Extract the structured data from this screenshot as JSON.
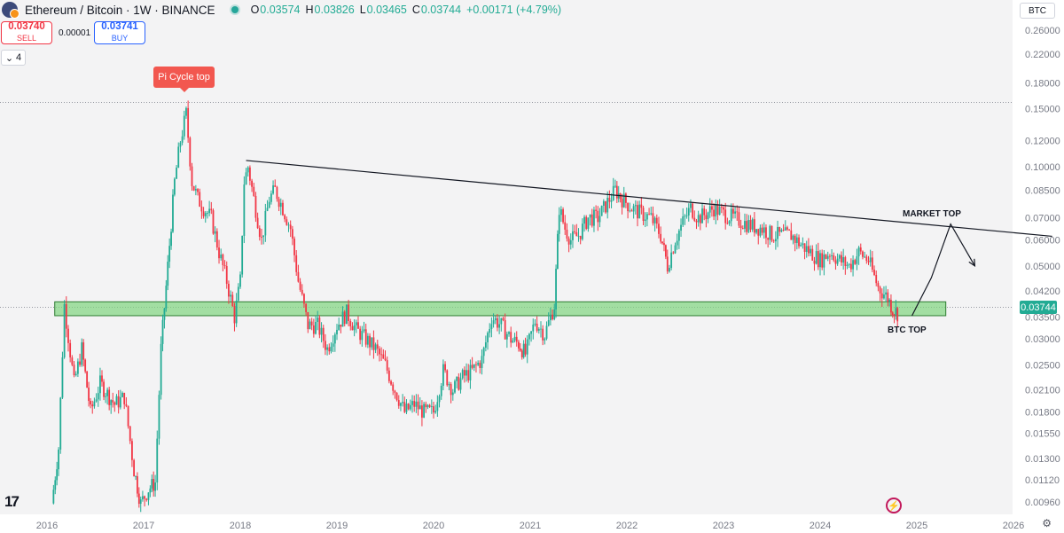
{
  "header": {
    "pair": "Ethereum / Bitcoin · 1W · BINANCE",
    "ohlc": [
      {
        "k": "O",
        "v": "0.03574"
      },
      {
        "k": "H",
        "v": "0.03826"
      },
      {
        "k": "L",
        "v": "0.03465"
      },
      {
        "k": "C",
        "v": "0.03744"
      },
      {
        "k": "",
        "v": "+0.00171 (+4.79%)"
      }
    ]
  },
  "trade": {
    "sell_price": "0.03740",
    "sell_label": "SELL",
    "buy_price": "0.03741",
    "buy_label": "BUY",
    "spread": "0.00001"
  },
  "indicators_count": "4",
  "currency": "BTC",
  "last_price_tag": "0.03744",
  "colors": {
    "up": "#22ab94",
    "down": "#f23645",
    "zone_fill": "#7fd47f",
    "zone_stroke": "#2e7d32",
    "trendline": "#131722"
  },
  "chart_data": {
    "type": "candlestick",
    "title": "Ethereum / Bitcoin · 1W · BINANCE",
    "y_scale": "log",
    "ylim": [
      0.0088,
      0.28
    ],
    "y_ticks": [
      "0.26000",
      "0.22000",
      "0.18000",
      "0.15000",
      "0.12000",
      "0.10000",
      "0.08500",
      "0.07000",
      "0.06000",
      "0.05000",
      "0.04200",
      "0.03500",
      "0.03000",
      "0.02500",
      "0.02100",
      "0.01800",
      "0.01550",
      "0.01300",
      "0.01120",
      "0.00960"
    ],
    "x_ticks": [
      "2016",
      "2017",
      "2018",
      "2019",
      "2020",
      "2021",
      "2022",
      "2023",
      "2024",
      "2025",
      "2026"
    ],
    "x_range": [
      2015.85,
      2026.4
    ],
    "price_path": [
      [
        2016.05,
        0.0095
      ],
      [
        2016.12,
        0.014
      ],
      [
        2016.18,
        0.038
      ],
      [
        2016.28,
        0.022
      ],
      [
        2016.36,
        0.028
      ],
      [
        2016.45,
        0.018
      ],
      [
        2016.55,
        0.022
      ],
      [
        2016.7,
        0.019
      ],
      [
        2016.8,
        0.02
      ],
      [
        2016.9,
        0.012
      ],
      [
        2016.97,
        0.0095
      ],
      [
        2017.05,
        0.0105
      ],
      [
        2017.12,
        0.011
      ],
      [
        2017.18,
        0.028
      ],
      [
        2017.25,
        0.05
      ],
      [
        2017.32,
        0.09
      ],
      [
        2017.38,
        0.12
      ],
      [
        2017.44,
        0.145
      ],
      [
        2017.5,
        0.09
      ],
      [
        2017.56,
        0.08
      ],
      [
        2017.62,
        0.075
      ],
      [
        2017.7,
        0.07
      ],
      [
        2017.78,
        0.055
      ],
      [
        2017.86,
        0.045
      ],
      [
        2017.94,
        0.035
      ],
      [
        2018.0,
        0.045
      ],
      [
        2018.04,
        0.09
      ],
      [
        2018.08,
        0.1
      ],
      [
        2018.14,
        0.08
      ],
      [
        2018.22,
        0.06
      ],
      [
        2018.3,
        0.08
      ],
      [
        2018.36,
        0.085
      ],
      [
        2018.44,
        0.075
      ],
      [
        2018.52,
        0.065
      ],
      [
        2018.6,
        0.045
      ],
      [
        2018.7,
        0.033
      ],
      [
        2018.8,
        0.033
      ],
      [
        2018.9,
        0.028
      ],
      [
        2019.0,
        0.033
      ],
      [
        2019.1,
        0.036
      ],
      [
        2019.2,
        0.032
      ],
      [
        2019.3,
        0.03
      ],
      [
        2019.4,
        0.028
      ],
      [
        2019.5,
        0.025
      ],
      [
        2019.6,
        0.021
      ],
      [
        2019.7,
        0.018
      ],
      [
        2019.8,
        0.019
      ],
      [
        2019.9,
        0.018
      ],
      [
        2020.0,
        0.018
      ],
      [
        2020.1,
        0.024
      ],
      [
        2020.2,
        0.021
      ],
      [
        2020.3,
        0.023
      ],
      [
        2020.4,
        0.024
      ],
      [
        2020.5,
        0.026
      ],
      [
        2020.6,
        0.035
      ],
      [
        2020.7,
        0.033
      ],
      [
        2020.8,
        0.03
      ],
      [
        2020.88,
        0.029
      ],
      [
        2020.95,
        0.027
      ],
      [
        2021.05,
        0.034
      ],
      [
        2021.15,
        0.031
      ],
      [
        2021.25,
        0.038
      ],
      [
        2021.3,
        0.075
      ],
      [
        2021.36,
        0.065
      ],
      [
        2021.42,
        0.06
      ],
      [
        2021.5,
        0.062
      ],
      [
        2021.6,
        0.07
      ],
      [
        2021.7,
        0.07
      ],
      [
        2021.8,
        0.078
      ],
      [
        2021.88,
        0.085
      ],
      [
        2021.95,
        0.08
      ],
      [
        2022.05,
        0.075
      ],
      [
        2022.15,
        0.072
      ],
      [
        2022.25,
        0.07
      ],
      [
        2022.35,
        0.062
      ],
      [
        2022.42,
        0.05
      ],
      [
        2022.5,
        0.06
      ],
      [
        2022.58,
        0.068
      ],
      [
        2022.66,
        0.075
      ],
      [
        2022.74,
        0.07
      ],
      [
        2022.82,
        0.072
      ],
      [
        2022.9,
        0.075
      ],
      [
        2023.0,
        0.072
      ],
      [
        2023.1,
        0.07
      ],
      [
        2023.2,
        0.068
      ],
      [
        2023.3,
        0.066
      ],
      [
        2023.4,
        0.065
      ],
      [
        2023.5,
        0.062
      ],
      [
        2023.6,
        0.062
      ],
      [
        2023.7,
        0.062
      ],
      [
        2023.8,
        0.058
      ],
      [
        2023.9,
        0.055
      ],
      [
        2024.0,
        0.052
      ],
      [
        2024.1,
        0.055
      ],
      [
        2024.2,
        0.052
      ],
      [
        2024.3,
        0.05
      ],
      [
        2024.4,
        0.055
      ],
      [
        2024.5,
        0.052
      ],
      [
        2024.6,
        0.043
      ],
      [
        2024.7,
        0.04
      ],
      [
        2024.75,
        0.037
      ],
      [
        2024.8,
        0.036
      ]
    ],
    "zone": {
      "low": 0.0353,
      "high": 0.0389,
      "x_start": 2016.08,
      "x_end": 2025.3
    },
    "trendline": [
      [
        2018.06,
        0.1045
      ],
      [
        2026.4,
        0.0615
      ]
    ],
    "pi_top_line": 0.1568,
    "last_price_line": 0.03744,
    "projection": [
      [
        2024.95,
        0.0353
      ],
      [
        2025.15,
        0.046
      ],
      [
        2025.35,
        0.067
      ],
      [
        2025.6,
        0.05
      ]
    ],
    "annotations": {
      "pi_cycle": "Pi Cycle top",
      "market_top": "MARKET TOP",
      "btc_top": "BTC TOP"
    }
  }
}
